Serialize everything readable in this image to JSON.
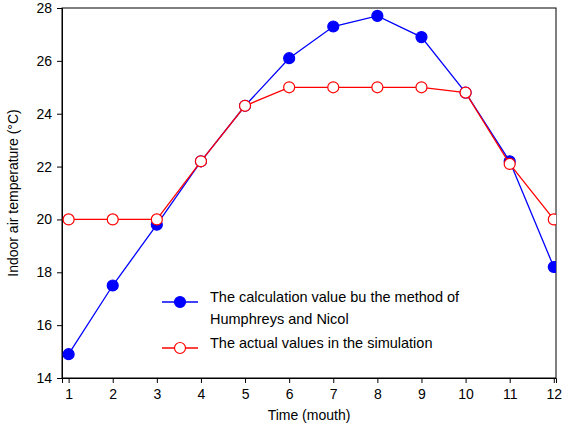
{
  "chart_data": {
    "type": "line",
    "x_label": "Time (mouth)",
    "y_label": "Indoor air temperature (°C)",
    "x": [
      1,
      2,
      3,
      4,
      5,
      6,
      7,
      8,
      9,
      10,
      11,
      12
    ],
    "series": [
      {
        "name": "The calculation value bu the method of Humphreys and Nicol",
        "color": "#0000ff",
        "marker": "circle-filled",
        "line_style": "solid",
        "values": [
          14.9,
          17.5,
          19.8,
          22.2,
          24.3,
          26.1,
          27.3,
          27.7,
          26.9,
          24.8,
          22.2,
          18.2
        ]
      },
      {
        "name": "The actual values in the simulation",
        "color": "#ff0000",
        "marker": "circle-open",
        "line_style": "solid",
        "values": [
          20,
          20,
          20,
          22.2,
          24.3,
          25,
          25,
          25,
          25,
          24.8,
          22.1,
          20
        ]
      }
    ],
    "xlim": [
      0.85,
      12.05
    ],
    "xticks": [
      1,
      2,
      3,
      4,
      5,
      6,
      7,
      8,
      9,
      10,
      11,
      12
    ],
    "ylim": [
      14,
      28
    ],
    "yticks": [
      14,
      16,
      18,
      20,
      22,
      24,
      26,
      28
    ],
    "grid": false,
    "legend": "lower center"
  }
}
